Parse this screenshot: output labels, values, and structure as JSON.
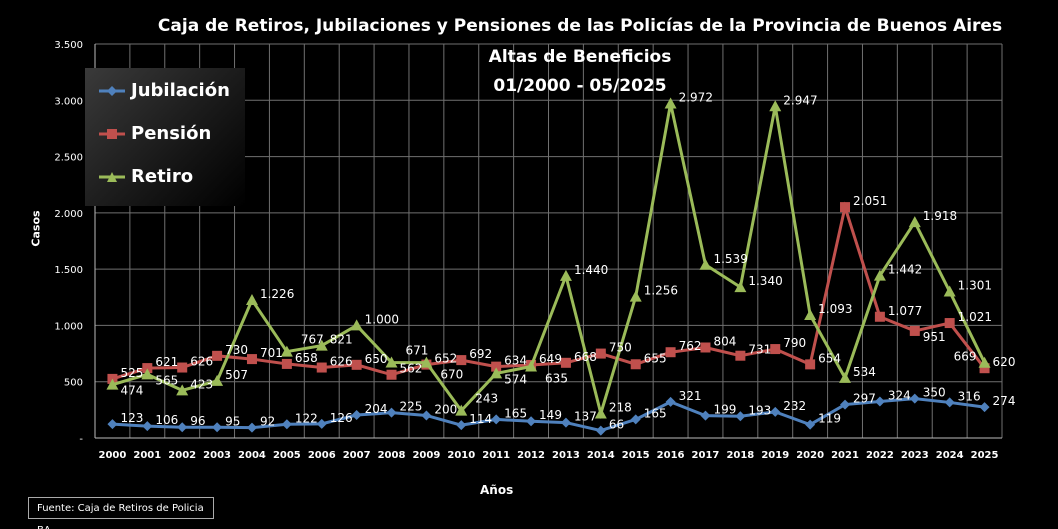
{
  "chart_data": {
    "type": "line",
    "title": "Caja de Retiros, Jubilaciones y Pensiones de las Policías de la Provincia de Buenos Aires",
    "subtitle": [
      "Altas de Beneficios",
      "01/2000 - 05/2025"
    ],
    "xlabel": "Años",
    "ylabel": "Casos",
    "ylim": [
      0,
      3500
    ],
    "yticks": [
      "-",
      "500",
      "1.000",
      "1.500",
      "2.000",
      "2.500",
      "3.000",
      "3.500"
    ],
    "categories": [
      "2000",
      "2001",
      "2002",
      "2003",
      "2004",
      "2005",
      "2006",
      "2007",
      "2008",
      "2009",
      "2010",
      "2011",
      "2012",
      "2013",
      "2014",
      "2015",
      "2016",
      "2017",
      "2018",
      "2019",
      "2020",
      "2021",
      "2022",
      "2023",
      "2024",
      "2025"
    ],
    "grid": true,
    "legend_position": "top-left",
    "series": [
      {
        "name": "Jubilación",
        "color": "#4f81bd",
        "marker": "diamond",
        "values": [
          123,
          106,
          96,
          95,
          92,
          122,
          126,
          204,
          225,
          200,
          114,
          165,
          149,
          137,
          66,
          165,
          321,
          199,
          193,
          232,
          119,
          297,
          324,
          350,
          316,
          274
        ]
      },
      {
        "name": "Pensión",
        "color": "#c0504d",
        "marker": "square",
        "values": [
          525,
          621,
          626,
          730,
          701,
          658,
          626,
          650,
          562,
          652,
          692,
          634,
          649,
          668,
          750,
          655,
          762,
          804,
          731,
          790,
          654,
          2051,
          1077,
          951,
          1021,
          620
        ]
      },
      {
        "name": "Retiro",
        "color": "#9bbb59",
        "marker": "triangle",
        "values": [
          474,
          565,
          423,
          507,
          1226,
          767,
          821,
          1000,
          671,
          670,
          243,
          574,
          635,
          1440,
          218,
          1256,
          2972,
          1539,
          1340,
          2947,
          1093,
          534,
          1442,
          1918,
          1301,
          669
        ]
      }
    ]
  },
  "source": "Fuente: Caja de Retiros de Policia BA"
}
